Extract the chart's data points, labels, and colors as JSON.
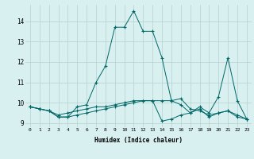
{
  "xlabel": "Humidex (Indice chaleur)",
  "ylabel": "",
  "background_color": "#d8f0f0",
  "grid_color": "#b8d0d0",
  "line_color": "#006666",
  "xlim": [
    -0.5,
    23.5
  ],
  "ylim": [
    8.8,
    14.8
  ],
  "yticks": [
    9,
    10,
    11,
    12,
    13,
    14
  ],
  "xticks": [
    0,
    1,
    2,
    3,
    4,
    5,
    6,
    7,
    8,
    9,
    10,
    11,
    12,
    13,
    14,
    15,
    16,
    17,
    18,
    19,
    20,
    21,
    22,
    23
  ],
  "series": [
    [
      9.8,
      9.7,
      9.6,
      9.3,
      9.3,
      9.8,
      9.9,
      11.0,
      11.8,
      13.7,
      13.7,
      14.5,
      13.5,
      13.5,
      12.2,
      10.1,
      9.9,
      9.5,
      9.8,
      9.5,
      10.3,
      12.2,
      10.1,
      9.2
    ],
    [
      9.8,
      9.7,
      9.6,
      9.3,
      9.3,
      9.4,
      9.5,
      9.6,
      9.7,
      9.8,
      9.9,
      10.0,
      10.1,
      10.1,
      9.1,
      9.2,
      9.4,
      9.5,
      9.7,
      9.3,
      9.5,
      9.6,
      9.3,
      9.2
    ],
    [
      9.8,
      9.7,
      9.6,
      9.4,
      9.5,
      9.6,
      9.7,
      9.8,
      9.8,
      9.9,
      10.0,
      10.1,
      10.1,
      10.1,
      10.1,
      10.1,
      10.2,
      9.7,
      9.6,
      9.4,
      9.5,
      9.6,
      9.4,
      9.2
    ]
  ]
}
